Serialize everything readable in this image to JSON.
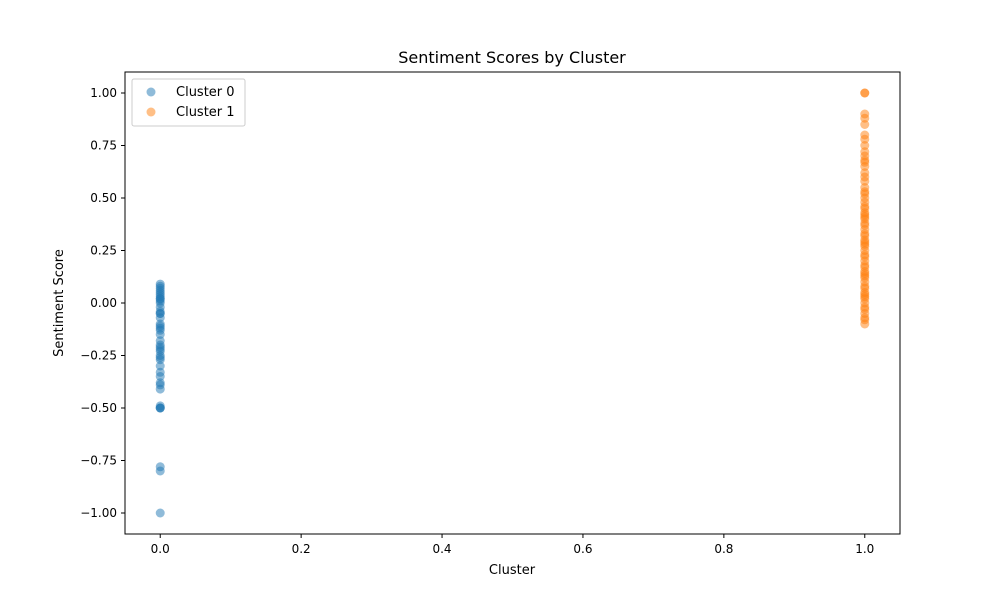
{
  "chart_data": {
    "type": "scatter",
    "title": "Sentiment Scores by Cluster",
    "xlabel": "Cluster",
    "ylabel": "Sentiment Score",
    "xlim": [
      -0.05,
      1.05
    ],
    "ylim": [
      -1.1,
      1.1
    ],
    "xticks": [
      0.0,
      0.2,
      0.4,
      0.6,
      0.8,
      1.0
    ],
    "xtick_labels": [
      "0.0",
      "0.2",
      "0.4",
      "0.6",
      "0.8",
      "1.0"
    ],
    "yticks": [
      -1.0,
      -0.75,
      -0.5,
      -0.25,
      0.0,
      0.25,
      0.5,
      0.75,
      1.0
    ],
    "ytick_labels": [
      "−1.00",
      "−0.75",
      "−0.50",
      "−0.25",
      "0.00",
      "0.25",
      "0.50",
      "0.75",
      "1.00"
    ],
    "grid": false,
    "legend_position": "top-left",
    "series": [
      {
        "name": "Cluster 0",
        "color": "#1f77b4",
        "x": [
          0,
          0,
          0,
          0,
          0,
          0,
          0,
          0,
          0,
          0,
          0,
          0,
          0,
          0,
          0,
          0,
          0,
          0,
          0,
          0,
          0,
          0,
          0,
          0,
          0,
          0,
          0,
          0,
          0,
          0,
          0,
          0,
          0,
          0,
          0,
          0,
          0,
          0,
          0,
          0,
          0,
          0
        ],
        "y": [
          0.09,
          0.08,
          0.07,
          0.06,
          0.05,
          0.04,
          0.03,
          0.02,
          0.01,
          0.0,
          -0.02,
          -0.04,
          -0.05,
          -0.07,
          -0.1,
          -0.11,
          -0.12,
          -0.13,
          -0.15,
          -0.18,
          -0.2,
          -0.21,
          -0.23,
          -0.25,
          -0.26,
          -0.27,
          -0.3,
          -0.33,
          -0.35,
          -0.38,
          -0.39,
          -0.41,
          -0.49,
          -0.5,
          -0.5,
          -0.5,
          -0.78,
          -0.8,
          -1.0,
          -0.05,
          0.02,
          -0.22
        ]
      },
      {
        "name": "Cluster 1",
        "color": "#ff7f0e",
        "x": [
          1,
          1,
          1,
          1,
          1,
          1,
          1,
          1,
          1,
          1,
          1,
          1,
          1,
          1,
          1,
          1,
          1,
          1,
          1,
          1,
          1,
          1,
          1,
          1,
          1,
          1,
          1,
          1,
          1,
          1,
          1,
          1,
          1,
          1,
          1,
          1,
          1,
          1,
          1,
          1,
          1,
          1,
          1,
          1,
          1,
          1,
          1,
          1,
          1,
          1,
          1,
          1,
          1,
          1,
          1,
          1,
          1,
          1,
          1,
          1
        ],
        "y": [
          1.0,
          1.0,
          0.9,
          0.88,
          0.85,
          0.8,
          0.78,
          0.75,
          0.72,
          0.7,
          0.68,
          0.65,
          0.62,
          0.6,
          0.58,
          0.55,
          0.53,
          0.5,
          0.48,
          0.46,
          0.45,
          0.43,
          0.42,
          0.4,
          0.38,
          0.37,
          0.35,
          0.33,
          0.32,
          0.3,
          0.28,
          0.27,
          0.25,
          0.23,
          0.22,
          0.2,
          0.18,
          0.17,
          0.15,
          0.13,
          0.12,
          0.1,
          0.08,
          0.07,
          0.05,
          0.03,
          0.02,
          0.0,
          -0.02,
          -0.03,
          -0.05,
          -0.07,
          -0.08,
          -0.1,
          0.67,
          0.52,
          0.41,
          0.29,
          0.14,
          0.04
        ]
      }
    ]
  }
}
